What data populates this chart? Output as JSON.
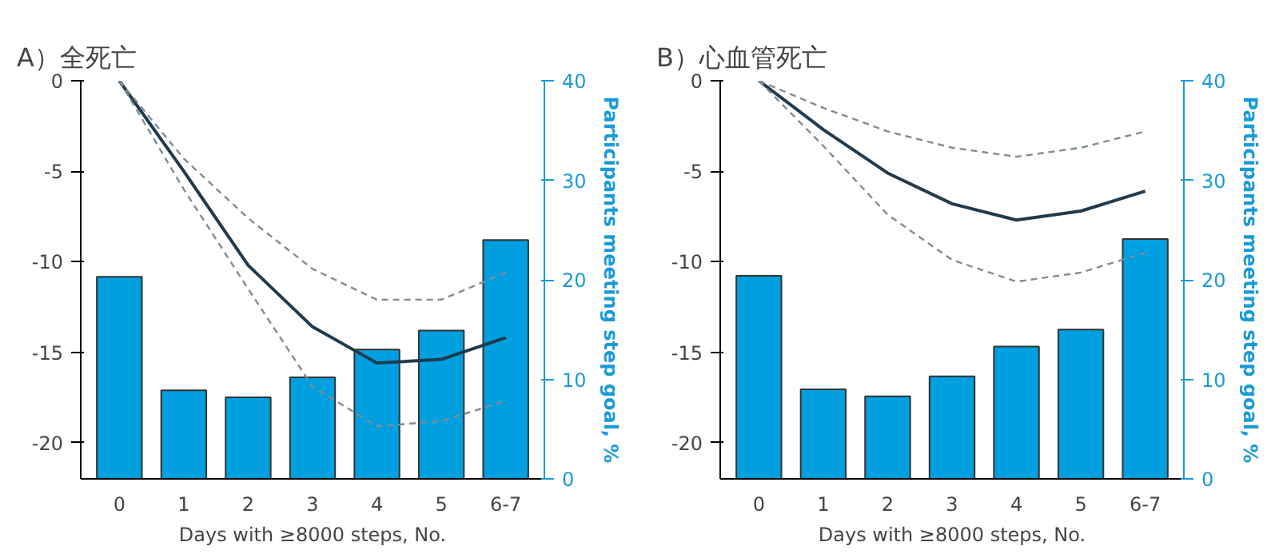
{
  "chart_data": [
    {
      "type": "bar",
      "title": "A）全死亡",
      "xlabel": "Days with ≥8000 steps, No.",
      "y2label": "Participants meeting step goal, %",
      "categories": [
        "0",
        "1",
        "2",
        "3",
        "4",
        "5",
        "6-7"
      ],
      "ylim": [
        -22,
        0
      ],
      "yticks": [
        0,
        -5,
        -10,
        -15,
        -20
      ],
      "y2lim": [
        0,
        40
      ],
      "y2ticks": [
        0,
        10,
        20,
        30,
        40
      ],
      "grid": false,
      "series": [
        {
          "axis": "y2",
          "color": "#009fdf",
          "values": [
            20.3,
            8.9,
            8.2,
            10.2,
            13.0,
            14.9,
            24.0
          ]
        },
        {
          "type": "line",
          "color": "#1f3b4d",
          "line_style": "solid",
          "values": [
            0,
            -5.0,
            -10.2,
            -13.6,
            -15.6,
            -15.4,
            -14.2
          ]
        },
        {
          "type": "line",
          "color": "#7f8c93",
          "line_style": "dashed",
          "values": [
            0,
            -4.3,
            -7.6,
            -10.4,
            -12.1,
            -12.1,
            -10.6
          ]
        },
        {
          "type": "line",
          "color": "#7f8c93",
          "line_style": "dashed",
          "values": [
            0,
            -6.0,
            -11.5,
            -16.9,
            -19.1,
            -18.8,
            -17.7
          ]
        }
      ]
    },
    {
      "type": "bar",
      "title": "B）心血管死亡",
      "xlabel": "Days with ≥8000 steps, No.",
      "y2label": "Participants meeting step goal, %",
      "categories": [
        "0",
        "1",
        "2",
        "3",
        "4",
        "5",
        "6-7"
      ],
      "ylim": [
        -22,
        0
      ],
      "yticks": [
        0,
        -5,
        -10,
        -15,
        -20
      ],
      "y2lim": [
        0,
        40
      ],
      "y2ticks": [
        0,
        10,
        20,
        30,
        40
      ],
      "grid": false,
      "series": [
        {
          "axis": "y2",
          "color": "#009fdf",
          "values": [
            20.4,
            9.0,
            8.3,
            10.3,
            13.3,
            15.0,
            24.1
          ]
        },
        {
          "type": "line",
          "color": "#1f3b4d",
          "line_style": "solid",
          "values": [
            0,
            -2.7,
            -5.1,
            -6.8,
            -7.7,
            -7.2,
            -6.1
          ]
        },
        {
          "type": "line",
          "color": "#7f8c93",
          "line_style": "dashed",
          "values": [
            0,
            -1.5,
            -2.8,
            -3.7,
            -4.2,
            -3.7,
            -2.8
          ]
        },
        {
          "type": "line",
          "color": "#7f8c93",
          "line_style": "dashed",
          "values": [
            0,
            -3.6,
            -7.4,
            -9.9,
            -11.1,
            -10.6,
            -9.5
          ]
        }
      ]
    }
  ]
}
